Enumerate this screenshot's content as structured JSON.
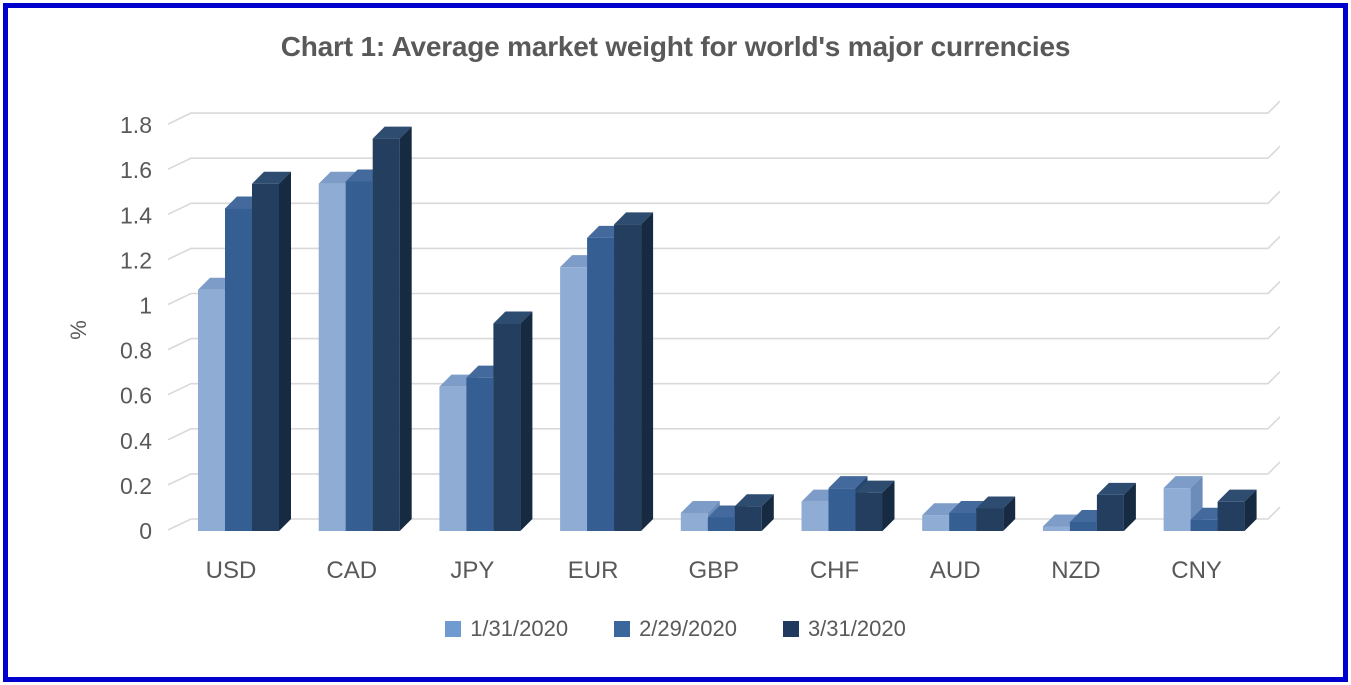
{
  "frame": {
    "border_color": "#0000CE",
    "background": "#FFFFFF"
  },
  "title": "Chart 1: Average market weight for world's major currencies",
  "title_color": "#595959",
  "chart_data": {
    "type": "bar",
    "subtype": "3d-clustered-column",
    "title": "Chart 1: Average market weight for world's major currencies",
    "xlabel": "",
    "ylabel": "%",
    "ylim": [
      0,
      1.8
    ],
    "ytick_step": 0.2,
    "yticks": [
      "0",
      "0.2",
      "0.4",
      "0.6",
      "0.8",
      "1",
      "1.2",
      "1.4",
      "1.6",
      "1.8"
    ],
    "grid": true,
    "gridline_color": "#D9D9D9",
    "axis_text_color": "#595959",
    "legend_position": "bottom",
    "categories": [
      "USD",
      "CAD",
      "JPY",
      "EUR",
      "GBP",
      "CHF",
      "AUD",
      "NZD",
      "CNY"
    ],
    "series": [
      {
        "name": "1/31/2020",
        "color": "#8FACD5",
        "color_top": "#7D9CC7",
        "color_side": "#6C8DB9",
        "legend_color": "#6F9BD1",
        "values": [
          1.07,
          1.54,
          0.64,
          1.17,
          0.08,
          0.13,
          0.07,
          0.02,
          0.19
        ]
      },
      {
        "name": "2/29/2020",
        "color": "#355E93",
        "color_top": "#44699C",
        "color_side": "#27466F",
        "legend_color": "#3A689C",
        "values": [
          1.43,
          1.55,
          0.68,
          1.3,
          0.06,
          0.19,
          0.08,
          0.04,
          0.05
        ]
      },
      {
        "name": "3/31/2020",
        "color": "#243E5F",
        "color_top": "#2D4C70",
        "color_side": "#162A41",
        "legend_color": "#1F3A5C",
        "values": [
          1.54,
          1.74,
          0.92,
          1.36,
          0.11,
          0.17,
          0.1,
          0.16,
          0.13
        ]
      }
    ]
  }
}
